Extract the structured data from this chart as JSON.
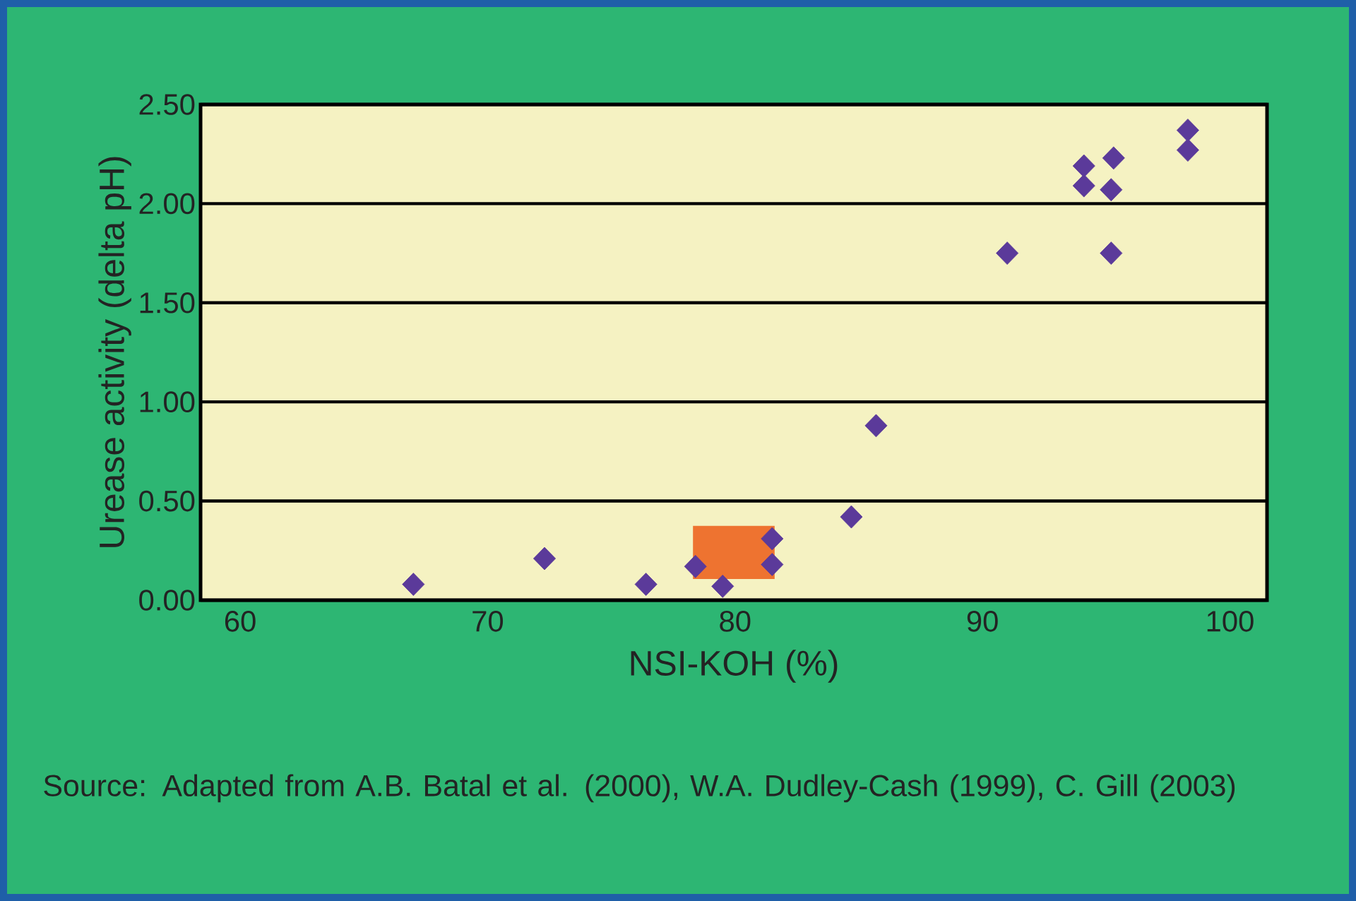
{
  "chart_data": {
    "type": "scatter",
    "xlabel": "NSI-KOH (%)",
    "ylabel": "Urease activity (delta pH)",
    "annotations": [
      "Source: Adapted from A.B. Batal et al. (2000), W.A. Dudley-Cash (1999), C. Gill (2003)"
    ],
    "x": [
      67.0,
      72.3,
      76.4,
      78.4,
      79.5,
      81.5,
      81.5,
      84.7,
      85.7,
      91.0,
      95.2,
      94.1,
      94.1,
      95.3,
      95.2,
      98.3,
      98.3
    ],
    "values": [
      0.08,
      0.21,
      0.08,
      0.17,
      0.07,
      0.31,
      0.18,
      0.42,
      0.88,
      1.75,
      1.75,
      2.09,
      2.19,
      2.23,
      2.07,
      2.37,
      2.27
    ],
    "color": "#5b3a9a",
    "marker": "diamond",
    "xlim": [
      58.4,
      101.5
    ],
    "xticks": [
      60,
      70,
      80,
      90,
      100
    ],
    "ylim": [
      0,
      2.5
    ],
    "yticks": [
      {
        "value": 0,
        "label": "0.00"
      },
      {
        "value": 0.5,
        "label": "0.50"
      },
      {
        "value": 1,
        "label": "1.00"
      },
      {
        "value": 1.5,
        "label": "1.50"
      },
      {
        "value": 2,
        "label": "2.00"
      },
      {
        "value": 2.5,
        "label": "2.50"
      }
    ],
    "grid": "y"
  }
}
